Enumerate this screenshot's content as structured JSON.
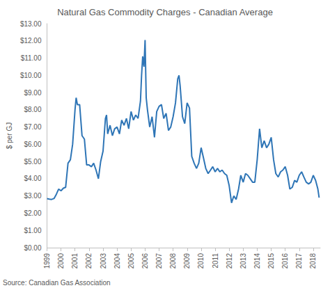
{
  "chart_data": {
    "type": "line",
    "title": "Natural Gas Commodity Charges - Canadian Average",
    "y_label": "$ per GJ",
    "annotations": [
      "Source: Canadian Gas Association"
    ],
    "color": "#2e75b6",
    "grid": false,
    "x": [
      1999.0,
      1999.17,
      1999.33,
      1999.5,
      1999.67,
      1999.83,
      2000.0,
      2000.17,
      2000.33,
      2000.5,
      2000.67,
      2000.83,
      2001.0,
      2001.08,
      2001.17,
      2001.33,
      2001.5,
      2001.67,
      2001.83,
      2002.0,
      2002.17,
      2002.33,
      2002.5,
      2002.67,
      2002.83,
      2003.0,
      2003.17,
      2003.25,
      2003.33,
      2003.5,
      2003.67,
      2003.83,
      2004.0,
      2004.17,
      2004.33,
      2004.5,
      2004.67,
      2004.83,
      2005.0,
      2005.17,
      2005.33,
      2005.5,
      2005.67,
      2005.75,
      2005.83,
      2005.92,
      2006.0,
      2006.08,
      2006.17,
      2006.33,
      2006.5,
      2006.67,
      2006.83,
      2007.0,
      2007.17,
      2007.33,
      2007.5,
      2007.67,
      2007.83,
      2008.0,
      2008.17,
      2008.33,
      2008.42,
      2008.5,
      2008.67,
      2008.83,
      2009.0,
      2009.17,
      2009.33,
      2009.5,
      2009.67,
      2009.83,
      2010.0,
      2010.17,
      2010.33,
      2010.5,
      2010.67,
      2010.83,
      2011.0,
      2011.17,
      2011.33,
      2011.5,
      2011.67,
      2011.83,
      2012.0,
      2012.17,
      2012.33,
      2012.5,
      2012.67,
      2012.83,
      2013.0,
      2013.17,
      2013.33,
      2013.5,
      2013.67,
      2013.83,
      2014.0,
      2014.17,
      2014.33,
      2014.5,
      2014.67,
      2014.83,
      2015.0,
      2015.17,
      2015.33,
      2015.5,
      2015.67,
      2015.83,
      2016.0,
      2016.17,
      2016.33,
      2016.5,
      2016.67,
      2016.83,
      2017.0,
      2017.17,
      2017.33,
      2017.5,
      2017.67,
      2017.83,
      2018.0,
      2018.17,
      2018.33,
      2018.42
    ],
    "values": [
      2.85,
      2.82,
      2.8,
      2.85,
      3.1,
      3.4,
      3.3,
      3.45,
      3.5,
      4.9,
      5.1,
      6.0,
      8.0,
      8.7,
      8.3,
      8.3,
      6.5,
      6.3,
      4.8,
      4.8,
      4.7,
      4.9,
      4.5,
      4.0,
      5.0,
      5.6,
      7.5,
      7.7,
      6.6,
      7.1,
      6.5,
      6.9,
      7.0,
      6.6,
      7.4,
      7.1,
      7.5,
      6.9,
      7.9,
      7.4,
      7.7,
      7.5,
      8.5,
      10.0,
      11.1,
      10.5,
      12.05,
      8.7,
      8.0,
      7.0,
      7.6,
      6.4,
      7.9,
      8.2,
      8.3,
      7.5,
      7.8,
      6.8,
      7.0,
      7.6,
      8.4,
      9.8,
      10.0,
      9.4,
      7.6,
      7.2,
      8.4,
      8.1,
      5.3,
      4.9,
      4.6,
      4.9,
      5.8,
      5.2,
      4.6,
      4.3,
      4.5,
      4.7,
      4.4,
      4.6,
      4.4,
      4.5,
      4.3,
      4.2,
      3.6,
      2.6,
      3.0,
      2.8,
      3.4,
      4.2,
      3.8,
      4.3,
      4.2,
      4.0,
      3.8,
      3.8,
      5.1,
      6.9,
      5.8,
      6.2,
      5.8,
      6.0,
      6.4,
      5.1,
      4.3,
      4.1,
      4.4,
      4.5,
      4.7,
      4.2,
      3.4,
      3.5,
      3.9,
      3.8,
      4.2,
      4.4,
      4.1,
      3.8,
      3.7,
      3.8,
      4.2,
      3.9,
      3.4,
      2.9
    ],
    "xlim": [
      1999,
      2018.5
    ],
    "xticks": [
      1999,
      2000,
      2001,
      2002,
      2003,
      2004,
      2005,
      2006,
      2007,
      2008,
      2009,
      2010,
      2011,
      2012,
      2013,
      2014,
      2015,
      2016,
      2017,
      2018
    ],
    "ylim": [
      0,
      13
    ],
    "yticks": [
      {
        "value": 0,
        "label": "$0.00"
      },
      {
        "value": 1,
        "label": "$1.00"
      },
      {
        "value": 2,
        "label": "$2.00"
      },
      {
        "value": 3,
        "label": "$3.00"
      },
      {
        "value": 4,
        "label": "$4.00"
      },
      {
        "value": 5,
        "label": "$5.00"
      },
      {
        "value": 6,
        "label": "$6.00"
      },
      {
        "value": 7,
        "label": "$7.00"
      },
      {
        "value": 8,
        "label": "$8.00"
      },
      {
        "value": 9,
        "label": "$9.00"
      },
      {
        "value": 10,
        "label": "$10.00"
      },
      {
        "value": 11,
        "label": "$11.00"
      },
      {
        "value": 12,
        "label": "$12.00"
      },
      {
        "value": 13,
        "label": "$13.00"
      }
    ]
  }
}
